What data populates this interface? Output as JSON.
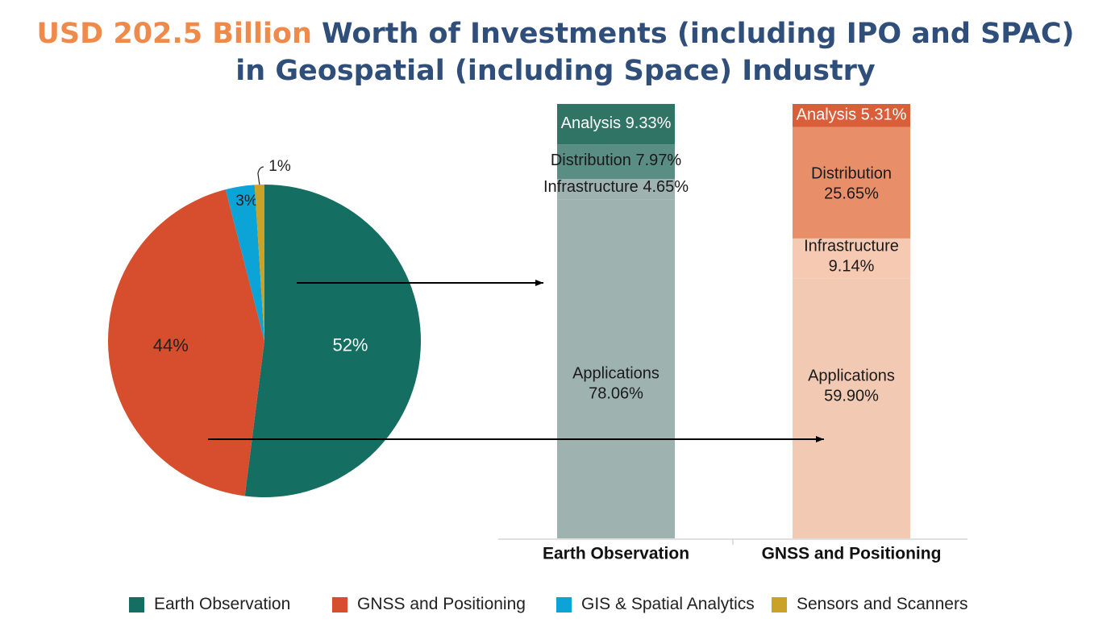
{
  "title": {
    "highlight": "USD 202.5 Billion",
    "line1_rest": " Worth of Investments (including IPO and SPAC)",
    "line2": "in Geospatial (including Space) Industry"
  },
  "colors": {
    "title_accent": "#f08a4b",
    "title_main": "#2f4f7a",
    "earth_observation": "#146e62",
    "gnss": "#d64e2d",
    "gis": "#0ca4d6",
    "sensors": "#c9a227"
  },
  "chart_data": [
    {
      "type": "pie",
      "slices": [
        {
          "name": "Earth Observation",
          "value": 52,
          "label": "52%",
          "color": "#146e62",
          "label_color": "#ffffff"
        },
        {
          "name": "GNSS and Positioning",
          "value": 44,
          "label": "44%",
          "color": "#d64e2d",
          "label_color": "#222222"
        },
        {
          "name": "GIS & Spatial Analytics",
          "value": 3,
          "label": "3%",
          "color": "#0ca4d6",
          "label_color": "#222222"
        },
        {
          "name": "Sensors and Scanners",
          "value": 1,
          "label": "1%",
          "color": "#c9a227",
          "label_color": "#222222"
        }
      ]
    },
    {
      "type": "bar",
      "stacked": true,
      "normalized_to": 100,
      "categories": [
        "Earth Observation",
        "GNSS and Positioning"
      ],
      "series": [
        {
          "name": "Applications",
          "values": [
            78.06,
            59.9
          ],
          "labels": [
            "Applications\n78.06%",
            "Applications\n59.90%"
          ],
          "colors": [
            "#9eb3b0",
            "#f2cab4"
          ]
        },
        {
          "name": "Infrastructure",
          "values": [
            4.65,
            9.14
          ],
          "labels": [
            "Infrastructure 4.65%",
            "Infrastructure\n9.14%"
          ],
          "colors": [
            "#9eb3b0",
            "#f5c9b2"
          ]
        },
        {
          "name": "Distribution",
          "values": [
            7.97,
            25.65
          ],
          "labels": [
            "Distribution 7.97%",
            "Distribution\n25.65%"
          ],
          "colors": [
            "#5a8d83",
            "#e88f6a"
          ]
        },
        {
          "name": "Analysis",
          "values": [
            9.33,
            5.31
          ],
          "labels": [
            "Analysis 9.33%",
            "Analysis 5.31%"
          ],
          "colors": [
            "#2f7465",
            "#d95f3a"
          ]
        }
      ]
    }
  ],
  "legend": [
    {
      "label": "Earth Observation",
      "color": "#146e62"
    },
    {
      "label": "GNSS and Positioning",
      "color": "#d64e2d"
    },
    {
      "label": "GIS & Spatial Analytics",
      "color": "#0ca4d6"
    },
    {
      "label": "Sensors and Scanners",
      "color": "#c9a227"
    }
  ]
}
